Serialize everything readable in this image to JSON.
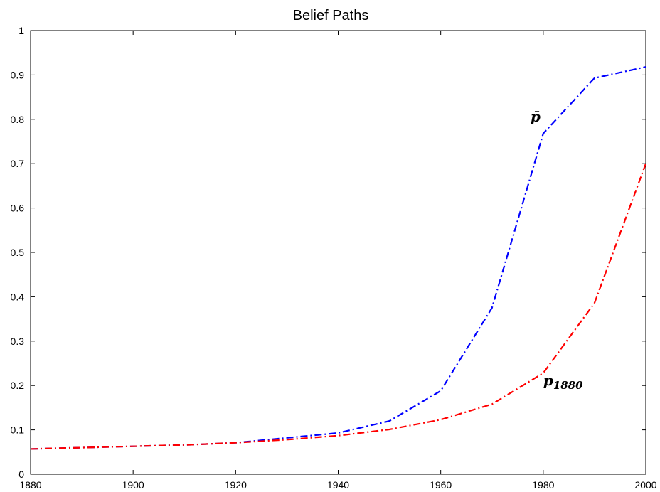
{
  "chart_data": {
    "type": "line",
    "title": "Belief Paths",
    "xlabel": "",
    "ylabel": "",
    "xlim": [
      1880,
      2000
    ],
    "ylim": [
      0,
      1
    ],
    "xticks": [
      1880,
      1900,
      1920,
      1940,
      1960,
      1980,
      2000
    ],
    "yticks": [
      0,
      0.1,
      0.2,
      0.3,
      0.4,
      0.5,
      0.6,
      0.7,
      0.8,
      0.9,
      1
    ],
    "ytick_labels": [
      "0",
      "0.1",
      "0.2",
      "0.3",
      "0.4",
      "0.5",
      "0.6",
      "0.7",
      "0.8",
      "0.9",
      "1"
    ],
    "grid": false,
    "x": [
      1880,
      1890,
      1900,
      1910,
      1920,
      1930,
      1940,
      1950,
      1960,
      1970,
      1980,
      1990,
      2000
    ],
    "series": [
      {
        "color": "#0000ff",
        "linestyle": "dash-dot",
        "values": [
          0.057,
          0.06,
          0.063,
          0.066,
          0.071,
          0.082,
          0.093,
          0.12,
          0.188,
          0.375,
          0.768,
          0.893,
          0.918
        ]
      },
      {
        "color": "#ff0000",
        "linestyle": "dash-dot",
        "values": [
          0.057,
          0.06,
          0.063,
          0.066,
          0.071,
          0.078,
          0.087,
          0.101,
          0.123,
          0.158,
          0.228,
          0.386,
          0.7
        ]
      }
    ],
    "annotations": [
      {
        "label": "p̄",
        "x": 1977.5,
        "y": 0.795,
        "style": "math-bold-italic"
      },
      {
        "label": "p",
        "subscript": "1880",
        "x": 1980,
        "y": 0.2,
        "style": "math-bold-italic"
      }
    ]
  }
}
